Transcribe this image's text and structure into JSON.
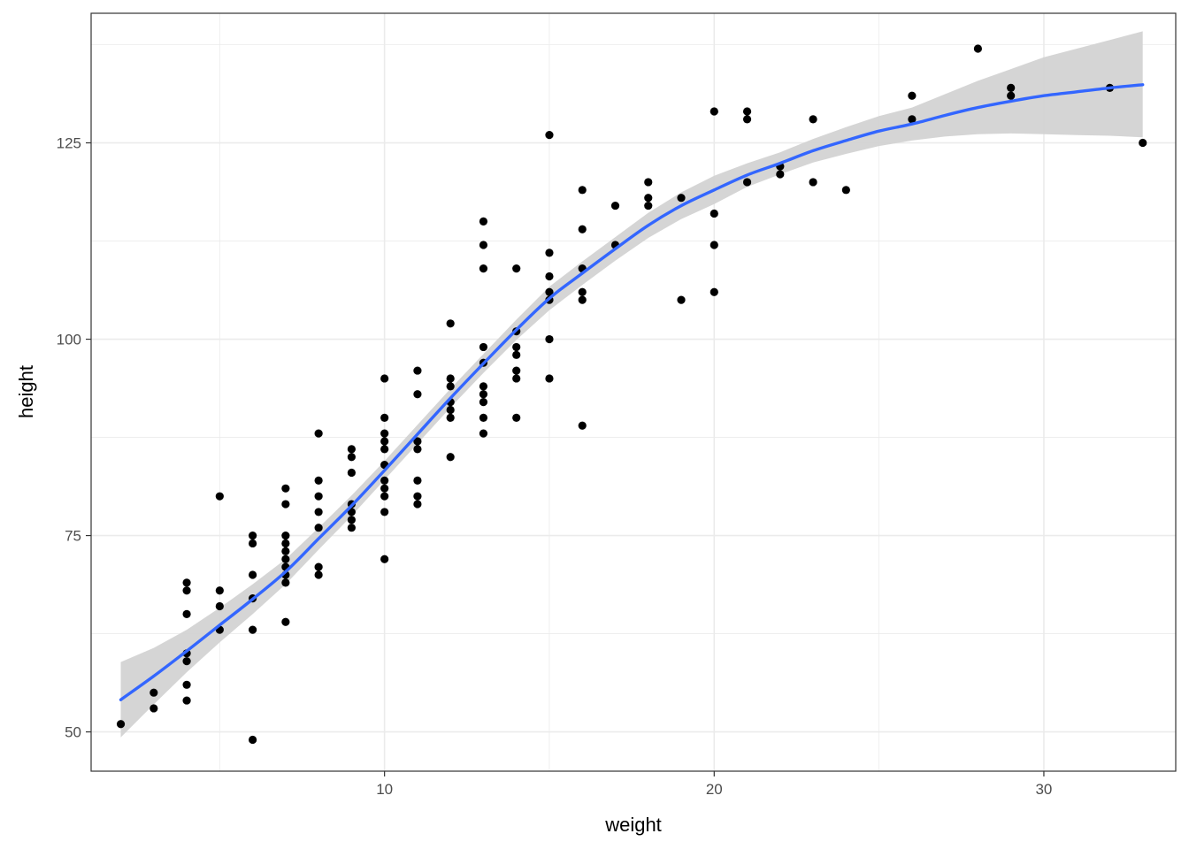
{
  "chart_data": {
    "type": "scatter",
    "title": "",
    "xlabel": "weight",
    "ylabel": "height",
    "xlim": [
      1.1,
      34.0
    ],
    "ylim": [
      45.0,
      141.5
    ],
    "x_ticks": [
      10,
      20,
      30
    ],
    "x_tick_labels": [
      "10",
      "20",
      "30"
    ],
    "y_ticks": [
      50,
      75,
      100,
      125
    ],
    "y_tick_labels": [
      "50",
      "75",
      "100",
      "125"
    ],
    "x_minor_ticks": [
      5,
      15,
      25
    ],
    "y_minor_ticks": [
      62.5,
      87.5,
      112.5,
      137.5
    ],
    "grid": true,
    "legend": "none",
    "colors": {
      "points": "#000000",
      "smooth_line": "#3366ff",
      "confidence_band": "#d3d3d3",
      "grid": "#ebebeb",
      "panel_border": "#333333"
    },
    "series": [
      {
        "type": "scatter",
        "points": [
          [
            2,
            51
          ],
          [
            3,
            53
          ],
          [
            3,
            55
          ],
          [
            4,
            54
          ],
          [
            4,
            56
          ],
          [
            4,
            59
          ],
          [
            4,
            60
          ],
          [
            4,
            65
          ],
          [
            4,
            68
          ],
          [
            4,
            69
          ],
          [
            5,
            63
          ],
          [
            5,
            66
          ],
          [
            5,
            68
          ],
          [
            5,
            80
          ],
          [
            6,
            49
          ],
          [
            6,
            63
          ],
          [
            6,
            67
          ],
          [
            6,
            70
          ],
          [
            6,
            74
          ],
          [
            6,
            75
          ],
          [
            7,
            64
          ],
          [
            7,
            69
          ],
          [
            7,
            70
          ],
          [
            7,
            71
          ],
          [
            7,
            72
          ],
          [
            7,
            73
          ],
          [
            7,
            74
          ],
          [
            7,
            75
          ],
          [
            7,
            79
          ],
          [
            7,
            81
          ],
          [
            8,
            70
          ],
          [
            8,
            71
          ],
          [
            8,
            76
          ],
          [
            8,
            78
          ],
          [
            8,
            80
          ],
          [
            8,
            82
          ],
          [
            8,
            88
          ],
          [
            9,
            76
          ],
          [
            9,
            77
          ],
          [
            9,
            78
          ],
          [
            9,
            79
          ],
          [
            9,
            83
          ],
          [
            9,
            85
          ],
          [
            9,
            86
          ],
          [
            10,
            72
          ],
          [
            10,
            78
          ],
          [
            10,
            80
          ],
          [
            10,
            81
          ],
          [
            10,
            82
          ],
          [
            10,
            84
          ],
          [
            10,
            86
          ],
          [
            10,
            87
          ],
          [
            10,
            88
          ],
          [
            10,
            90
          ],
          [
            10,
            95
          ],
          [
            11,
            79
          ],
          [
            11,
            80
          ],
          [
            11,
            82
          ],
          [
            11,
            86
          ],
          [
            11,
            87
          ],
          [
            11,
            93
          ],
          [
            11,
            96
          ],
          [
            12,
            85
          ],
          [
            12,
            90
          ],
          [
            12,
            91
          ],
          [
            12,
            92
          ],
          [
            12,
            94
          ],
          [
            12,
            95
          ],
          [
            12,
            102
          ],
          [
            13,
            88
          ],
          [
            13,
            90
          ],
          [
            13,
            92
          ],
          [
            13,
            93
          ],
          [
            13,
            94
          ],
          [
            13,
            97
          ],
          [
            13,
            99
          ],
          [
            13,
            109
          ],
          [
            13,
            112
          ],
          [
            13,
            115
          ],
          [
            14,
            90
          ],
          [
            14,
            95
          ],
          [
            14,
            96
          ],
          [
            14,
            98
          ],
          [
            14,
            99
          ],
          [
            14,
            101
          ],
          [
            14,
            109
          ],
          [
            15,
            95
          ],
          [
            15,
            100
          ],
          [
            15,
            105
          ],
          [
            15,
            106
          ],
          [
            15,
            108
          ],
          [
            15,
            111
          ],
          [
            15,
            126
          ],
          [
            16,
            89
          ],
          [
            16,
            105
          ],
          [
            16,
            106
          ],
          [
            16,
            109
          ],
          [
            16,
            114
          ],
          [
            16,
            119
          ],
          [
            17,
            112
          ],
          [
            17,
            117
          ],
          [
            18,
            117
          ],
          [
            18,
            118
          ],
          [
            18,
            120
          ],
          [
            19,
            105
          ],
          [
            19,
            118
          ],
          [
            20,
            106
          ],
          [
            20,
            112
          ],
          [
            20,
            116
          ],
          [
            20,
            129
          ],
          [
            21,
            120
          ],
          [
            21,
            128
          ],
          [
            21,
            129
          ],
          [
            22,
            121
          ],
          [
            22,
            122
          ],
          [
            23,
            120
          ],
          [
            23,
            128
          ],
          [
            24,
            119
          ],
          [
            26,
            128
          ],
          [
            26,
            131
          ],
          [
            28,
            137
          ],
          [
            29,
            131
          ],
          [
            29,
            132
          ],
          [
            32,
            132
          ],
          [
            33,
            125
          ]
        ]
      },
      {
        "type": "line",
        "method": "smooth",
        "x": [
          2,
          3,
          4,
          5,
          6,
          7,
          8,
          9,
          10,
          11,
          12,
          13,
          14,
          15,
          16,
          17,
          18,
          19,
          20,
          21,
          22,
          23,
          24,
          25,
          26,
          27,
          28,
          29,
          30,
          31,
          32,
          33
        ],
        "y": [
          54.1,
          57.1,
          60.3,
          63.6,
          66.9,
          70.4,
          74.6,
          78.8,
          83.3,
          87.9,
          92.5,
          96.9,
          101.2,
          105.2,
          108.4,
          111.5,
          114.5,
          117.0,
          119.0,
          120.9,
          122.4,
          124.0,
          125.3,
          126.5,
          127.4,
          128.5,
          129.5,
          130.3,
          131.0,
          131.5,
          132.0,
          132.4
        ],
        "band_lower": [
          49.3,
          53.5,
          57.6,
          61.4,
          65.0,
          68.8,
          73.2,
          77.5,
          82.1,
          86.7,
          91.3,
          95.7,
          99.9,
          103.7,
          106.9,
          110.0,
          112.9,
          115.3,
          117.2,
          119.4,
          121.0,
          122.5,
          123.6,
          124.6,
          125.3,
          125.8,
          126.1,
          126.2,
          126.1,
          126.0,
          125.9,
          125.7
        ],
        "band_upper": [
          58.9,
          60.7,
          63.0,
          65.8,
          68.8,
          72.0,
          76.0,
          80.1,
          84.5,
          89.1,
          93.7,
          98.1,
          102.5,
          106.7,
          109.9,
          113.0,
          116.1,
          118.7,
          120.8,
          122.4,
          123.8,
          125.5,
          127.0,
          128.4,
          129.5,
          131.2,
          132.9,
          134.4,
          135.9,
          137.0,
          138.1,
          139.2
        ]
      }
    ]
  }
}
